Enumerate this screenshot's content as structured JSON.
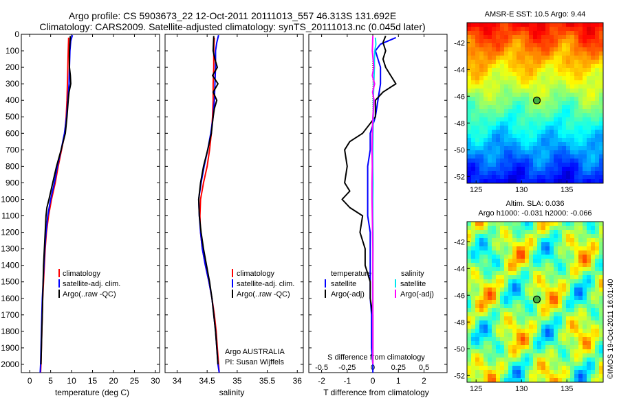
{
  "header": {
    "line1": "Argo profile: CS 5903673_22 12-Oct-2011 20111013_557 46.313S 131.692E",
    "line2": "Climatology: CARS2009. Satellite-adjusted climatology: synTS_20111013.nc (0.045d later)"
  },
  "colors": {
    "climatology": "#ff0000",
    "satellite": "#0000ff",
    "argo": "#000000",
    "sal_satellite": "#00e5ee",
    "sal_argo": "#ff00ff"
  },
  "chart_data": [
    {
      "type": "line",
      "xlabel": "temperature (deg C)",
      "xlim": [
        -2,
        31
      ],
      "ylim": [
        2050,
        0
      ],
      "xticks": [
        0,
        5,
        10,
        15,
        20,
        25,
        30
      ],
      "yticks": [
        0,
        100,
        200,
        300,
        400,
        500,
        600,
        700,
        800,
        900,
        1000,
        1100,
        1200,
        1300,
        1400,
        1500,
        1600,
        1700,
        1800,
        1900,
        2000
      ],
      "legend": [
        "climatology",
        "satellite-adj. clim.",
        "Argo(..raw -QC)"
      ],
      "series": [
        {
          "name": "climatology",
          "color": "#ff0000",
          "depth": [
            20,
            100,
            200,
            300,
            400,
            500,
            600,
            700,
            800,
            900,
            1000,
            1100,
            1200,
            1300,
            1400,
            1500,
            1600,
            1700,
            1800,
            1900,
            2000,
            2050
          ],
          "values": [
            9.3,
            9.2,
            9.1,
            9.0,
            8.9,
            8.7,
            8.4,
            7.6,
            6.8,
            6.1,
            5.2,
            4.5,
            4.0,
            3.7,
            3.5,
            3.3,
            3.1,
            3.0,
            2.9,
            2.8,
            2.7,
            2.6
          ]
        },
        {
          "name": "satellite-adj. clim.",
          "color": "#0000ff",
          "depth": [
            5,
            40,
            100,
            200,
            300,
            400,
            500,
            600,
            700,
            800,
            900,
            1000,
            1100,
            1200,
            1300,
            1400,
            1500,
            1600,
            1700,
            1800,
            1900,
            2000,
            2050
          ],
          "values": [
            10.2,
            9.8,
            9.6,
            9.5,
            9.4,
            9.1,
            8.8,
            8.3,
            7.5,
            6.6,
            5.9,
            5.0,
            4.3,
            3.9,
            3.6,
            3.4,
            3.2,
            3.0,
            2.9,
            2.8,
            2.7,
            2.6,
            2.5
          ]
        },
        {
          "name": "Argo(..raw -QC)",
          "color": "#000000",
          "depth": [
            10,
            50,
            100,
            150,
            200,
            250,
            300,
            350,
            400,
            500,
            600,
            700,
            800,
            900,
            1000,
            1050,
            1100,
            1200,
            1300,
            1400,
            1500,
            1600,
            1700,
            1800,
            1900,
            2000
          ],
          "values": [
            9.7,
            9.6,
            9.5,
            9.5,
            9.5,
            9.7,
            9.8,
            9.4,
            9.2,
            8.9,
            8.5,
            7.5,
            6.4,
            5.5,
            4.6,
            4.1,
            3.9,
            3.7,
            3.5,
            3.3,
            3.2,
            3.1,
            3.0,
            2.9,
            2.8,
            2.7
          ]
        }
      ]
    },
    {
      "type": "line",
      "xlabel": "salinity",
      "xlim": [
        33.8,
        36.1
      ],
      "ylim": [
        2050,
        0
      ],
      "xticks": [
        34,
        34.5,
        35,
        35.5,
        36
      ],
      "legend": [
        "climatology",
        "satellite-adj. clim.",
        "Argo(..raw -QC)"
      ],
      "annotation": [
        "Argo AUSTRALIA",
        "PI: Susan Wijffels"
      ],
      "series": [
        {
          "name": "climatology",
          "color": "#ff0000",
          "depth": [
            20,
            100,
            200,
            300,
            400,
            500,
            600,
            700,
            800,
            900,
            1000,
            1100,
            1200,
            1300,
            1400,
            1500,
            1600,
            1700,
            1800,
            1900,
            2000,
            2050
          ],
          "values": [
            34.62,
            34.61,
            34.61,
            34.6,
            34.6,
            34.59,
            34.57,
            34.54,
            34.5,
            34.44,
            34.39,
            34.38,
            34.39,
            34.42,
            34.47,
            34.53,
            34.58,
            34.62,
            34.65,
            34.67,
            34.69,
            34.7
          ]
        },
        {
          "name": "satellite-adj. clim.",
          "color": "#0000ff",
          "depth": [
            5,
            50,
            100,
            200,
            300,
            400,
            500,
            600,
            700,
            800,
            900,
            1000,
            1100,
            1200,
            1300,
            1400,
            1500,
            1600,
            1700,
            1800,
            1900,
            2000,
            2050
          ],
          "values": [
            34.69,
            34.66,
            34.64,
            34.64,
            34.63,
            34.62,
            34.6,
            34.56,
            34.51,
            34.45,
            34.4,
            34.36,
            34.37,
            34.39,
            34.42,
            34.47,
            34.53,
            34.58,
            34.61,
            34.64,
            34.66,
            34.68,
            34.7
          ]
        },
        {
          "name": "Argo(..raw -QC)",
          "color": "#000000",
          "depth": [
            10,
            100,
            150,
            200,
            250,
            300,
            350,
            400,
            450,
            500,
            600,
            700,
            800,
            900,
            1000,
            1100,
            1200,
            1300,
            1400,
            1500,
            1600,
            1700,
            1800,
            1900,
            2000
          ],
          "values": [
            34.61,
            34.6,
            34.63,
            34.67,
            34.59,
            34.68,
            34.6,
            34.66,
            34.62,
            34.6,
            34.57,
            34.51,
            34.44,
            34.39,
            34.36,
            34.37,
            34.4,
            34.44,
            34.49,
            34.54,
            34.58,
            34.61,
            34.64,
            34.66,
            34.68
          ]
        }
      ]
    },
    {
      "type": "line",
      "xlabel": "T difference from climatology",
      "xlabel_top": "S difference from climatology",
      "xlim": [
        -2.5,
        2.9
      ],
      "ylim": [
        2050,
        0
      ],
      "xticks": [
        -2,
        -1,
        0,
        1,
        2
      ],
      "xticks_top": [
        "-0.5",
        "-0.25",
        "0",
        "0.25",
        "0.5"
      ],
      "legend_temperature_title": "temperature",
      "legend_salinity_title": "salinity",
      "legend": [
        "satellite",
        "Argo(-adj)",
        "satellite",
        "Argo(-adj)"
      ],
      "series": [
        {
          "name": "satellite",
          "group": "temperature",
          "color": "#0000ff",
          "depth": [
            20,
            60,
            100,
            150,
            200,
            300,
            400,
            500,
            600,
            700,
            800,
            900,
            1000,
            1100,
            1200,
            1300,
            1400,
            1500,
            1600,
            1700,
            1800,
            1900,
            2000,
            2050
          ],
          "values": [
            0.9,
            0.3,
            0.1,
            0.2,
            0.3,
            0.3,
            0.2,
            0.1,
            -0.1,
            -0.1,
            -0.2,
            -0.2,
            -0.2,
            -0.2,
            -0.1,
            -0.1,
            -0.1,
            -0.1,
            -0.1,
            -0.05,
            -0.05,
            -0.05,
            0,
            0
          ]
        },
        {
          "name": "Argo(-adj)",
          "group": "temperature",
          "color": "#000000",
          "depth": [
            10,
            50,
            100,
            150,
            200,
            250,
            300,
            350,
            400,
            500,
            600,
            650,
            700,
            800,
            900,
            950,
            1000,
            1050,
            1100,
            1200,
            1300,
            1400,
            1500,
            1600,
            1700,
            1800,
            1900,
            2000
          ],
          "values": [
            0.5,
            0.4,
            0.5,
            0.4,
            0.5,
            0.7,
            0.9,
            0.4,
            0.1,
            0.1,
            -0.4,
            -0.9,
            -1.1,
            -1.0,
            -1.1,
            -0.9,
            -1.2,
            -0.9,
            -0.4,
            -0.5,
            -0.3,
            -0.3,
            -0.1,
            -0.1,
            0,
            0,
            0,
            0
          ]
        },
        {
          "name": "satellite",
          "group": "salinity",
          "color": "#00e5ee",
          "depth": [
            20,
            60,
            100,
            150,
            200,
            300,
            400,
            500,
            600,
            700,
            800,
            900,
            1000,
            1100,
            1200,
            1300,
            1400,
            1500,
            1600,
            1700,
            1800,
            1900,
            2000
          ],
          "values": [
            0.1,
            0.12,
            0.08,
            0.06,
            0.06,
            0.04,
            0.02,
            0.02,
            0.01,
            0,
            0,
            0.01,
            0,
            0,
            0.01,
            0.01,
            0,
            0,
            0,
            0,
            0,
            0,
            0
          ]
        },
        {
          "name": "Argo(-adj)",
          "group": "salinity",
          "color": "#ff00ff",
          "depth": [
            10,
            60,
            100,
            150,
            200,
            250,
            300,
            350,
            400,
            500,
            600,
            700,
            800,
            900,
            1000,
            1100,
            1200,
            1300,
            1400,
            1500,
            1600,
            1700,
            1800,
            1900,
            2000
          ],
          "values": [
            0.0,
            -0.01,
            -0.02,
            0.01,
            0.04,
            -0.02,
            0.07,
            -0.01,
            0.05,
            0.0,
            -0.02,
            -0.03,
            -0.02,
            -0.03,
            -0.03,
            -0.02,
            -0.01,
            0.0,
            0.0,
            0.0,
            0.0,
            0.0,
            0.0,
            0.0,
            0.0
          ]
        }
      ]
    },
    {
      "type": "heatmap",
      "title": "AMSR-E SST: 10.5  Argo: 9.44",
      "xlim": [
        124,
        139
      ],
      "ylim": [
        -52.5,
        -40.5
      ],
      "xticks": [
        125,
        130,
        135
      ],
      "yticks": [
        -42,
        -44,
        -46,
        -48,
        -50,
        -52
      ],
      "marker": {
        "lon": 131.692,
        "lat": -46.313
      }
    },
    {
      "type": "heatmap",
      "title_line1": "Altim. SLA: 0.036",
      "title_line2": "Argo h1000: -0.031 h2000: -0.066",
      "xlim": [
        124,
        139
      ],
      "ylim": [
        -52.5,
        -40.5
      ],
      "xticks": [
        125,
        130,
        135
      ],
      "yticks": [
        -42,
        -44,
        -46,
        -48,
        -50,
        -52
      ],
      "marker": {
        "lon": 131.692,
        "lat": -46.313
      }
    }
  ],
  "footer": {
    "credit": "©IMOS 19-Oct-2011 16:01:40"
  }
}
